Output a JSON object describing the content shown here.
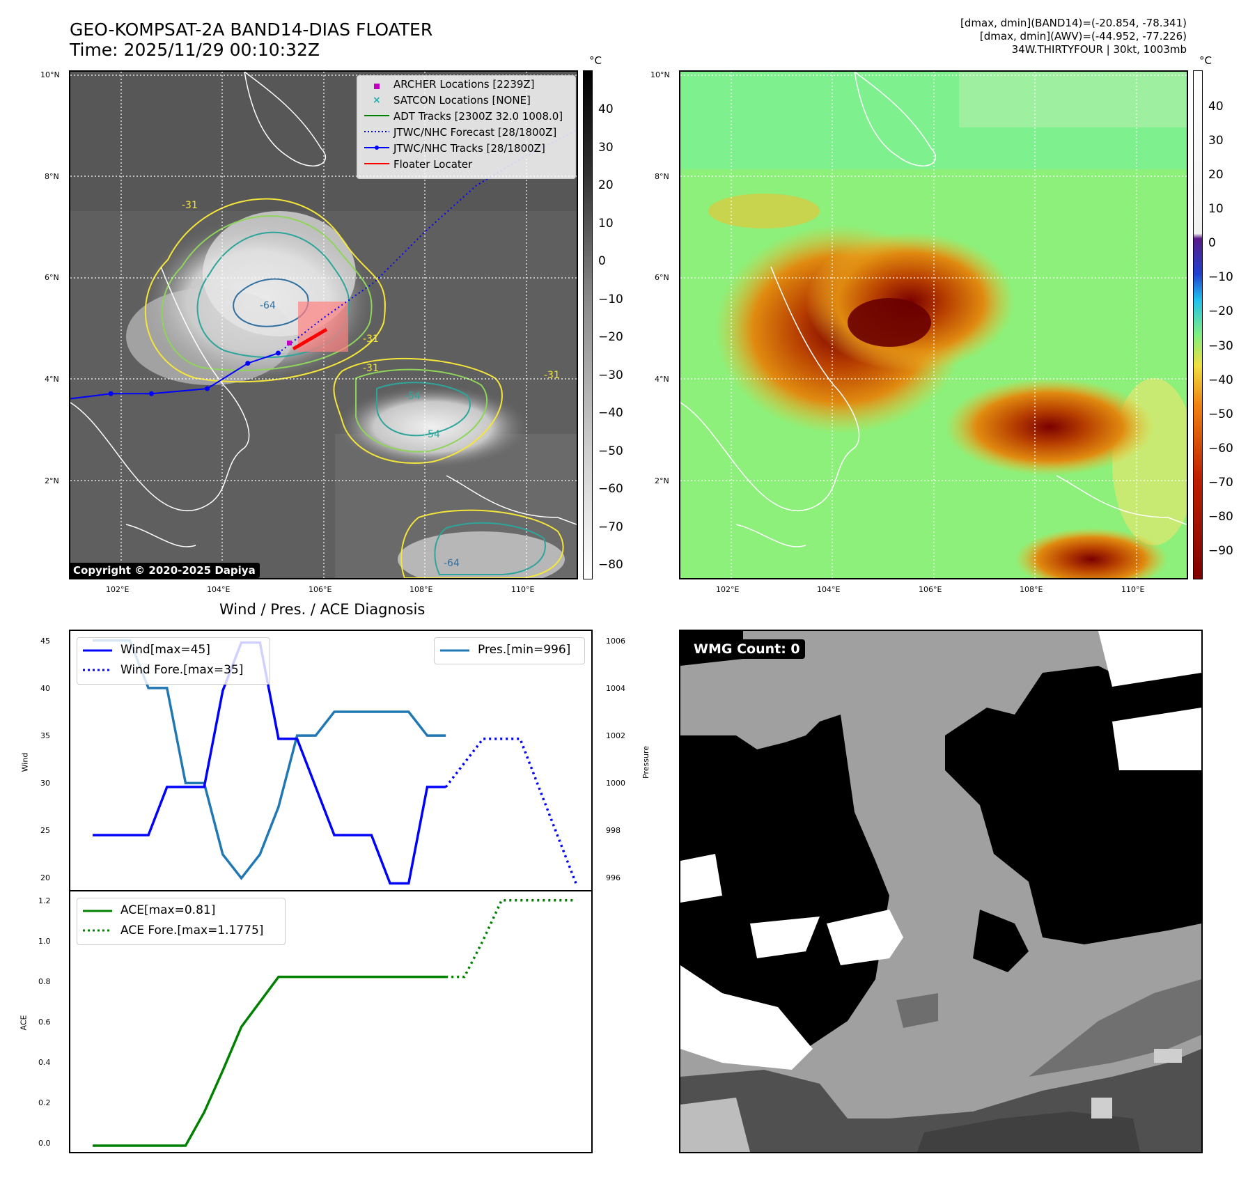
{
  "header": {
    "title_line1": "GEO-KOMPSAT-2A BAND14-DIAS FLOATER",
    "title_line2": "Time: 2025/11/29 00:10:32Z"
  },
  "right_info": {
    "line1": "[dmax, dmin](BAND14)=(-20.854, -78.341)",
    "line2": "[dmax, dmin](AWV)=(-44.952, -77.226)",
    "line3": "34W.THIRTYFOUR | 30kt, 1003mb"
  },
  "map_axes": {
    "lat_ticks": [
      "10°N",
      "8°N",
      "6°N",
      "4°N",
      "2°N"
    ],
    "lon_ticks": [
      "102°E",
      "104°E",
      "106°E",
      "108°E",
      "110°E"
    ]
  },
  "ir_map": {
    "legend": [
      {
        "label": "ARCHER Locations [2239Z]",
        "color": "#c000c0",
        "marker": "square"
      },
      {
        "label": "SATCON Locations [NONE]",
        "color": "#20b0b0",
        "marker": "x"
      },
      {
        "label": "ADT Tracks [2300Z 32.0 1008.0]",
        "color": "#008000",
        "marker": "line"
      },
      {
        "label": "JTWC/NHC Forecast [28/1800Z]",
        "color": "#0000ff",
        "marker": "dotted"
      },
      {
        "label": "JTWC/NHC Tracks [28/1800Z]",
        "color": "#0000ff",
        "marker": "line-dot"
      },
      {
        "label": "Floater Locater",
        "color": "#ff0000",
        "marker": "line"
      }
    ],
    "copyright": "Copyright © 2020-2025 Dapiya",
    "contour_labels": [
      "-31",
      "-54",
      "-64",
      "-31",
      "-31",
      "-54",
      "-64",
      "-31"
    ],
    "colorbar_unit": "°C",
    "colorbar_ticks": [
      "40",
      "30",
      "20",
      "10",
      "0",
      "−10",
      "−20",
      "−30",
      "−40",
      "−50",
      "−60",
      "−70",
      "−80"
    ],
    "track_lonlat": [
      [
        101.0,
        3.6
      ],
      [
        101.8,
        3.7
      ],
      [
        102.6,
        3.7
      ],
      [
        103.7,
        3.8
      ],
      [
        104.5,
        4.3
      ],
      [
        105.1,
        4.5
      ]
    ],
    "forecast_lonlat": [
      [
        105.1,
        4.5
      ],
      [
        106.0,
        5.2
      ],
      [
        107.0,
        5.9
      ],
      [
        108.0,
        6.9
      ],
      [
        109.0,
        7.8
      ],
      [
        110.0,
        8.4
      ],
      [
        111.0,
        8.9
      ]
    ]
  },
  "awv_map": {
    "colorbar_unit": "°C",
    "colorbar_ticks": [
      "40",
      "30",
      "20",
      "10",
      "0",
      "−10",
      "−20",
      "−30",
      "−40",
      "−50",
      "−60",
      "−70",
      "−80",
      "−90"
    ]
  },
  "diagnosis": {
    "title": "Wind / Pres. / ACE Diagnosis",
    "wind_ylabel": "Wind",
    "pres_ylabel": "Pressure",
    "ace_ylabel": "ACE",
    "legend_wind": "Wind[max=45]",
    "legend_wind_fore": "Wind Fore.[max=35]",
    "legend_pres": "Pres.[min=996]",
    "legend_ace": "ACE[max=0.81]",
    "legend_ace_fore": "ACE Fore.[max=1.1775]",
    "wind_ticks": [
      "45",
      "40",
      "35",
      "30",
      "25",
      "20"
    ],
    "pres_ticks": [
      "1006",
      "1004",
      "1002",
      "1000",
      "998",
      "996"
    ],
    "ace_ticks": [
      "1.2",
      "1.0",
      "0.8",
      "0.6",
      "0.4",
      "0.2",
      "0.0"
    ],
    "wmg": "WMG Count: 0"
  },
  "chart_data": [
    {
      "type": "line",
      "title": "Wind / Pres. / ACE Diagnosis",
      "ylabel": "Wind",
      "ylim": [
        19.3,
        46.2
      ],
      "series": [
        {
          "name": "Wind[max=45]",
          "x": [
            0,
            1,
            2,
            3,
            4,
            5,
            6,
            7,
            8,
            9,
            10,
            11,
            12,
            13,
            14,
            15,
            16,
            17,
            18,
            19
          ],
          "values": [
            25,
            25,
            25,
            25,
            30,
            30,
            30,
            40,
            45,
            45,
            35,
            35,
            30,
            25,
            25,
            25,
            20,
            20,
            30,
            30
          ],
          "color": "#0000ff",
          "style": "solid"
        },
        {
          "name": "Wind Fore.[max=35]",
          "x": [
            19,
            20,
            21,
            22,
            23,
            24,
            25,
            26
          ],
          "values": [
            30,
            32.5,
            35,
            35,
            35,
            30,
            25,
            20
          ],
          "color": "#0000ff",
          "style": "dotted"
        }
      ]
    },
    {
      "type": "line",
      "ylabel": "Pressure",
      "ylim": [
        995.5,
        1006.4
      ],
      "series": [
        {
          "name": "Pres.[min=996]",
          "x": [
            0,
            1,
            2,
            3,
            4,
            5,
            6,
            7,
            8,
            9,
            10,
            11,
            12,
            13,
            14,
            15,
            16,
            17,
            18,
            19
          ],
          "values": [
            1006,
            1006,
            1006,
            1004,
            1004,
            1000,
            1000,
            997,
            996,
            997,
            999,
            1002,
            1002,
            1003,
            1003,
            1003,
            1003,
            1003,
            1002,
            1002
          ],
          "color": "#1f77b4",
          "style": "solid"
        }
      ]
    },
    {
      "type": "line",
      "ylabel": "ACE",
      "ylim": [
        -0.03,
        1.22
      ],
      "series": [
        {
          "name": "ACE[max=0.81]",
          "x": [
            0,
            1,
            2,
            3,
            4,
            5,
            6,
            7,
            8,
            9,
            10,
            11,
            12,
            13,
            14,
            15,
            16,
            17,
            18,
            19
          ],
          "values": [
            0,
            0,
            0,
            0,
            0,
            0,
            0.16,
            0.36,
            0.57,
            0.69,
            0.81,
            0.81,
            0.81,
            0.81,
            0.81,
            0.81,
            0.81,
            0.81,
            0.81,
            0.81
          ],
          "color": "#008000",
          "style": "solid"
        },
        {
          "name": "ACE Fore.[max=1.1775]",
          "x": [
            19,
            20,
            21,
            22,
            23,
            24,
            25,
            26
          ],
          "values": [
            0.81,
            0.81,
            0.985,
            1.1775,
            1.1775,
            1.1775,
            1.1775,
            1.1775
          ],
          "color": "#008000",
          "style": "dotted"
        }
      ]
    }
  ]
}
